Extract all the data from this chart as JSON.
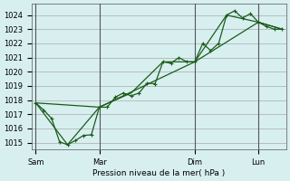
{
  "background_color": "#d8eff0",
  "grid_color": "#aaaaaa",
  "line_color": "#1a5c1a",
  "marker_color": "#1a5c1a",
  "xlabel": "Pression niveau de la mer( hPa )",
  "ylim": [
    1014.5,
    1024.8
  ],
  "yticks": [
    1015,
    1016,
    1017,
    1018,
    1019,
    1020,
    1021,
    1022,
    1023,
    1024
  ],
  "xtick_labels": [
    "Sam",
    "Mar",
    "Dim",
    "Lun"
  ],
  "xtick_positions": [
    0,
    8,
    20,
    28
  ],
  "vlines": [
    0,
    8,
    20,
    28
  ],
  "series1_x": [
    0,
    1,
    2,
    3,
    4,
    5,
    6,
    7,
    8,
    9,
    10,
    11,
    12,
    13,
    14,
    15,
    16,
    17,
    18,
    19,
    20,
    21,
    22,
    23,
    24,
    25,
    26,
    27,
    28,
    29,
    30,
    31
  ],
  "series1_y": [
    1017.8,
    1017.3,
    1016.7,
    1015.05,
    1014.85,
    1015.15,
    1015.5,
    1015.55,
    1017.5,
    1017.5,
    1018.2,
    1018.5,
    1018.3,
    1018.5,
    1019.2,
    1019.15,
    1020.7,
    1020.6,
    1021.0,
    1020.7,
    1020.7,
    1022.0,
    1021.5,
    1022.0,
    1024.0,
    1024.3,
    1023.8,
    1024.1,
    1023.5,
    1023.2,
    1023.0,
    1023.0
  ],
  "series2_x": [
    0,
    4,
    8,
    12,
    16,
    20,
    24,
    28,
    31
  ],
  "series2_y": [
    1017.8,
    1014.85,
    1017.5,
    1018.5,
    1020.7,
    1020.7,
    1024.0,
    1023.5,
    1023.0
  ],
  "series3_x": [
    0,
    8,
    20,
    28,
    31
  ],
  "series3_y": [
    1017.8,
    1017.5,
    1020.7,
    1023.5,
    1023.0
  ],
  "xlim": [
    -0.5,
    31.5
  ]
}
